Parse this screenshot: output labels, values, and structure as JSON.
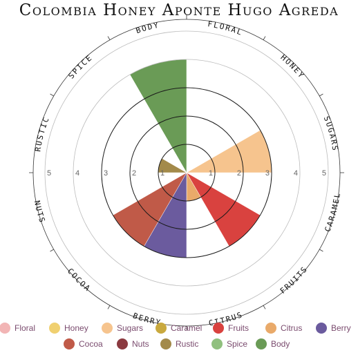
{
  "chart_data": {
    "type": "polar-bar",
    "title": "Colombia Honey Aponte Hugo Agreda",
    "rlim": [
      0,
      5
    ],
    "ticks": [
      1,
      2,
      3,
      4,
      5
    ],
    "tick_labels": [
      "1",
      "2",
      "3",
      "4",
      "5"
    ],
    "categories": [
      "Floral",
      "Honey",
      "Sugars",
      "Caramel",
      "Fruits",
      "Citrus",
      "Berry",
      "Cocoa",
      "Nuts",
      "Rustic",
      "Spice",
      "Body"
    ],
    "axis_labels": [
      "FLORAL",
      "HONEY",
      "SUGARS",
      "CARAMEL",
      "FRUITS",
      "CITRUS",
      "BERRY",
      "COCOA",
      "NUTS",
      "RUSTIC",
      "SPICE",
      "BODY"
    ],
    "values": [
      0,
      0,
      3,
      0,
      3,
      1,
      3,
      3,
      0,
      1,
      0,
      4
    ],
    "colors": [
      "#f2b5b5",
      "#f0d070",
      "#f6c48e",
      "#c9a93e",
      "#d9423f",
      "#e9aa6a",
      "#6b5b9e",
      "#c05a48",
      "#8b3a40",
      "#a38a4a",
      "#90c07e",
      "#6a9b56"
    ],
    "grid": true,
    "legend_position": "bottom"
  }
}
